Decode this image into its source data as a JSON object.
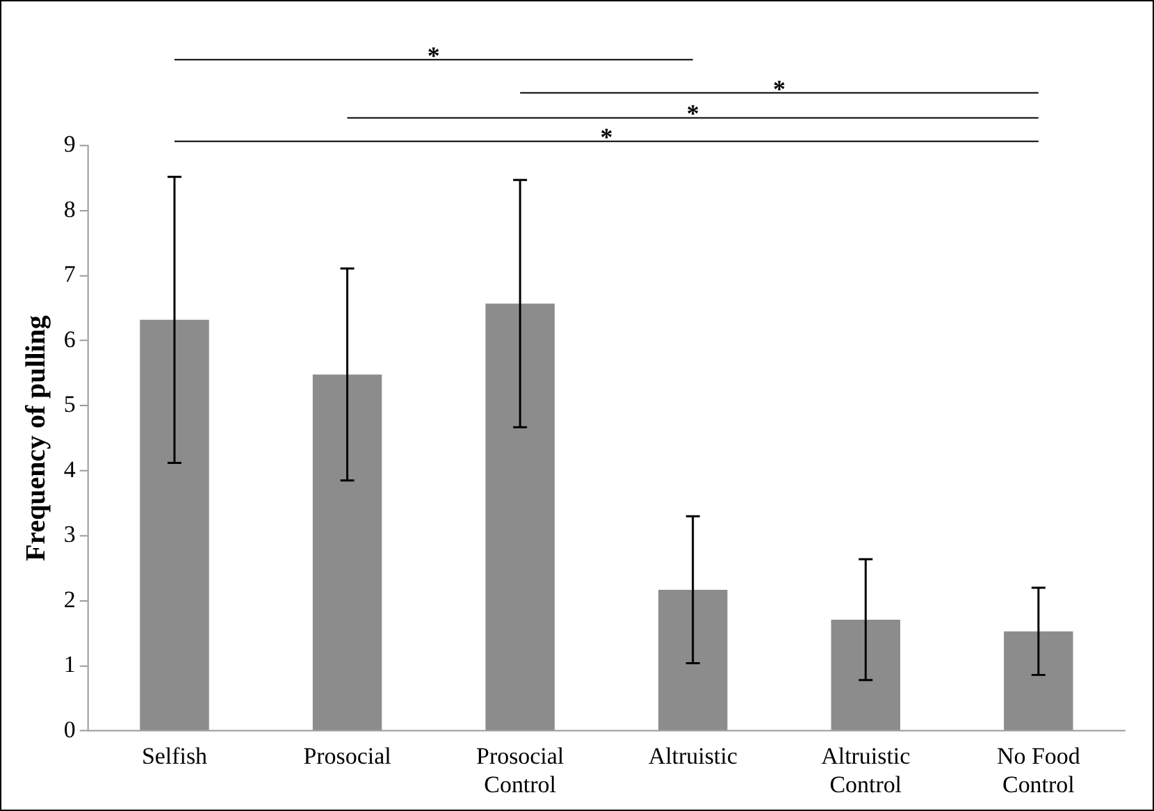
{
  "chart_data": {
    "type": "bar",
    "ylabel": "Frequency of pulling",
    "categories": [
      "Selfish",
      "Prosocial",
      "Prosocial Control",
      "Altruistic",
      "Altruistic Control",
      "No Food Control"
    ],
    "values": [
      6.32,
      5.48,
      6.57,
      2.17,
      1.71,
      1.53
    ],
    "errors": [
      2.2,
      1.63,
      1.9,
      1.13,
      0.93,
      0.67
    ],
    "color": "#8c8c8c",
    "ylim": [
      0,
      9
    ],
    "yticks": [
      0,
      1,
      2,
      3,
      4,
      5,
      6,
      7,
      8,
      9
    ],
    "grid": false,
    "legend": false,
    "annotations": [
      "*",
      "*",
      "*",
      "*"
    ]
  }
}
